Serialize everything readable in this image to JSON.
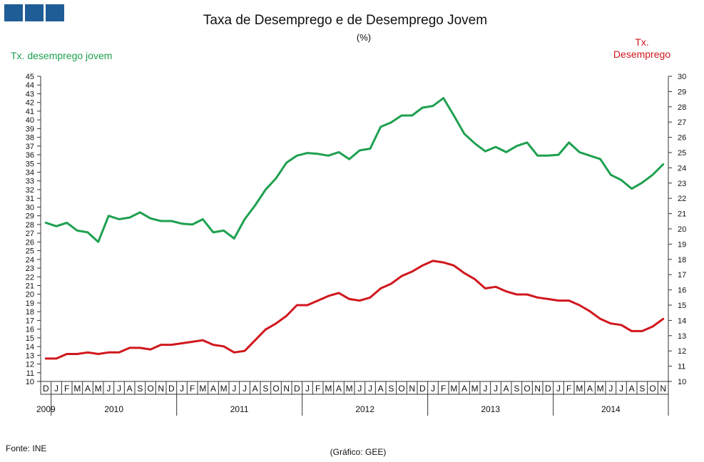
{
  "logo": {
    "name": "gee-logo",
    "color": "#1f5d96"
  },
  "chart_data": {
    "type": "line",
    "title": "Taxa de Desemprego  e de Desemprego  Jovem",
    "subtitle": "(%)",
    "ylabel_left": "Tx.  desemprego jovem",
    "ylabel_right_lines": [
      "Tx.",
      "Desemprego"
    ],
    "ylim_left": [
      10,
      45
    ],
    "ylim_right": [
      10,
      30
    ],
    "months": [
      "D",
      "J",
      "F",
      "M",
      "A",
      "M",
      "J",
      "J",
      "A",
      "S",
      "O",
      "N",
      "D",
      "J",
      "F",
      "M",
      "A",
      "M",
      "J",
      "J",
      "A",
      "S",
      "O",
      "N",
      "D",
      "J",
      "F",
      "M",
      "A",
      "M",
      "J",
      "J",
      "A",
      "S",
      "O",
      "N",
      "D",
      "J",
      "F",
      "M",
      "A",
      "M",
      "J",
      "J",
      "A",
      "S",
      "O",
      "N",
      "D",
      "J",
      "F",
      "M",
      "A",
      "M",
      "J",
      "J",
      "A",
      "S",
      "O",
      "N"
    ],
    "years": [
      {
        "label": "2009",
        "start": 0,
        "end": 0
      },
      {
        "label": "2010",
        "start": 1,
        "end": 12
      },
      {
        "label": "2011",
        "start": 13,
        "end": 24
      },
      {
        "label": "2012",
        "start": 25,
        "end": 36
      },
      {
        "label": "2013",
        "start": 37,
        "end": 48
      },
      {
        "label": "2014",
        "start": 49,
        "end": 59
      }
    ],
    "series": [
      {
        "name": "Tx. desemprego jovem",
        "axis": "left",
        "color": "#1ea050",
        "values": [
          28.2,
          27.8,
          28.2,
          27.3,
          27.1,
          26.0,
          29.0,
          28.6,
          28.8,
          29.4,
          28.7,
          28.4,
          28.4,
          28.1,
          28.0,
          28.6,
          27.1,
          27.3,
          26.4,
          28.6,
          30.2,
          32.0,
          33.3,
          35.1,
          35.9,
          36.2,
          36.1,
          35.9,
          36.3,
          35.5,
          36.5,
          36.7,
          39.2,
          39.7,
          40.5,
          40.5,
          41.4,
          41.6,
          42.5,
          40.5,
          38.4,
          37.3,
          36.4,
          36.9,
          36.3,
          37.0,
          37.4,
          35.9,
          35.9,
          36.0,
          37.4,
          36.3,
          35.9,
          35.5,
          33.7,
          33.1,
          32.1,
          32.8,
          33.7,
          34.9
        ]
      },
      {
        "name": "Tx. Desemprego",
        "axis": "right",
        "color": "#d0171d",
        "values": [
          11.5,
          11.5,
          11.8,
          11.8,
          11.9,
          11.8,
          11.9,
          11.9,
          12.2,
          12.2,
          12.1,
          12.4,
          12.4,
          12.5,
          12.6,
          12.7,
          12.4,
          12.3,
          11.9,
          12.0,
          12.7,
          13.4,
          13.8,
          14.3,
          15.0,
          15.0,
          15.3,
          15.6,
          15.8,
          15.4,
          15.3,
          15.5,
          16.1,
          16.4,
          16.9,
          17.2,
          17.6,
          17.9,
          17.8,
          17.6,
          17.1,
          16.7,
          16.1,
          16.2,
          15.9,
          15.7,
          15.7,
          15.5,
          15.4,
          15.3,
          15.3,
          15.0,
          14.6,
          14.1,
          13.8,
          13.7,
          13.3,
          13.3,
          13.6,
          14.1
        ]
      }
    ],
    "yticks_left": [
      10,
      11,
      12,
      13,
      14,
      15,
      16,
      17,
      18,
      19,
      20,
      21,
      22,
      23,
      24,
      25,
      26,
      27,
      28,
      29,
      30,
      31,
      32,
      33,
      34,
      35,
      36,
      37,
      38,
      39,
      40,
      41,
      42,
      43,
      44,
      45
    ],
    "yticks_right": [
      10,
      11,
      12,
      13,
      14,
      15,
      16,
      17,
      18,
      19,
      20,
      21,
      22,
      23,
      24,
      25,
      26,
      27,
      28,
      29,
      30
    ],
    "source": "Fonte:  INE",
    "credit": "(Gráfico:  GEE)"
  }
}
